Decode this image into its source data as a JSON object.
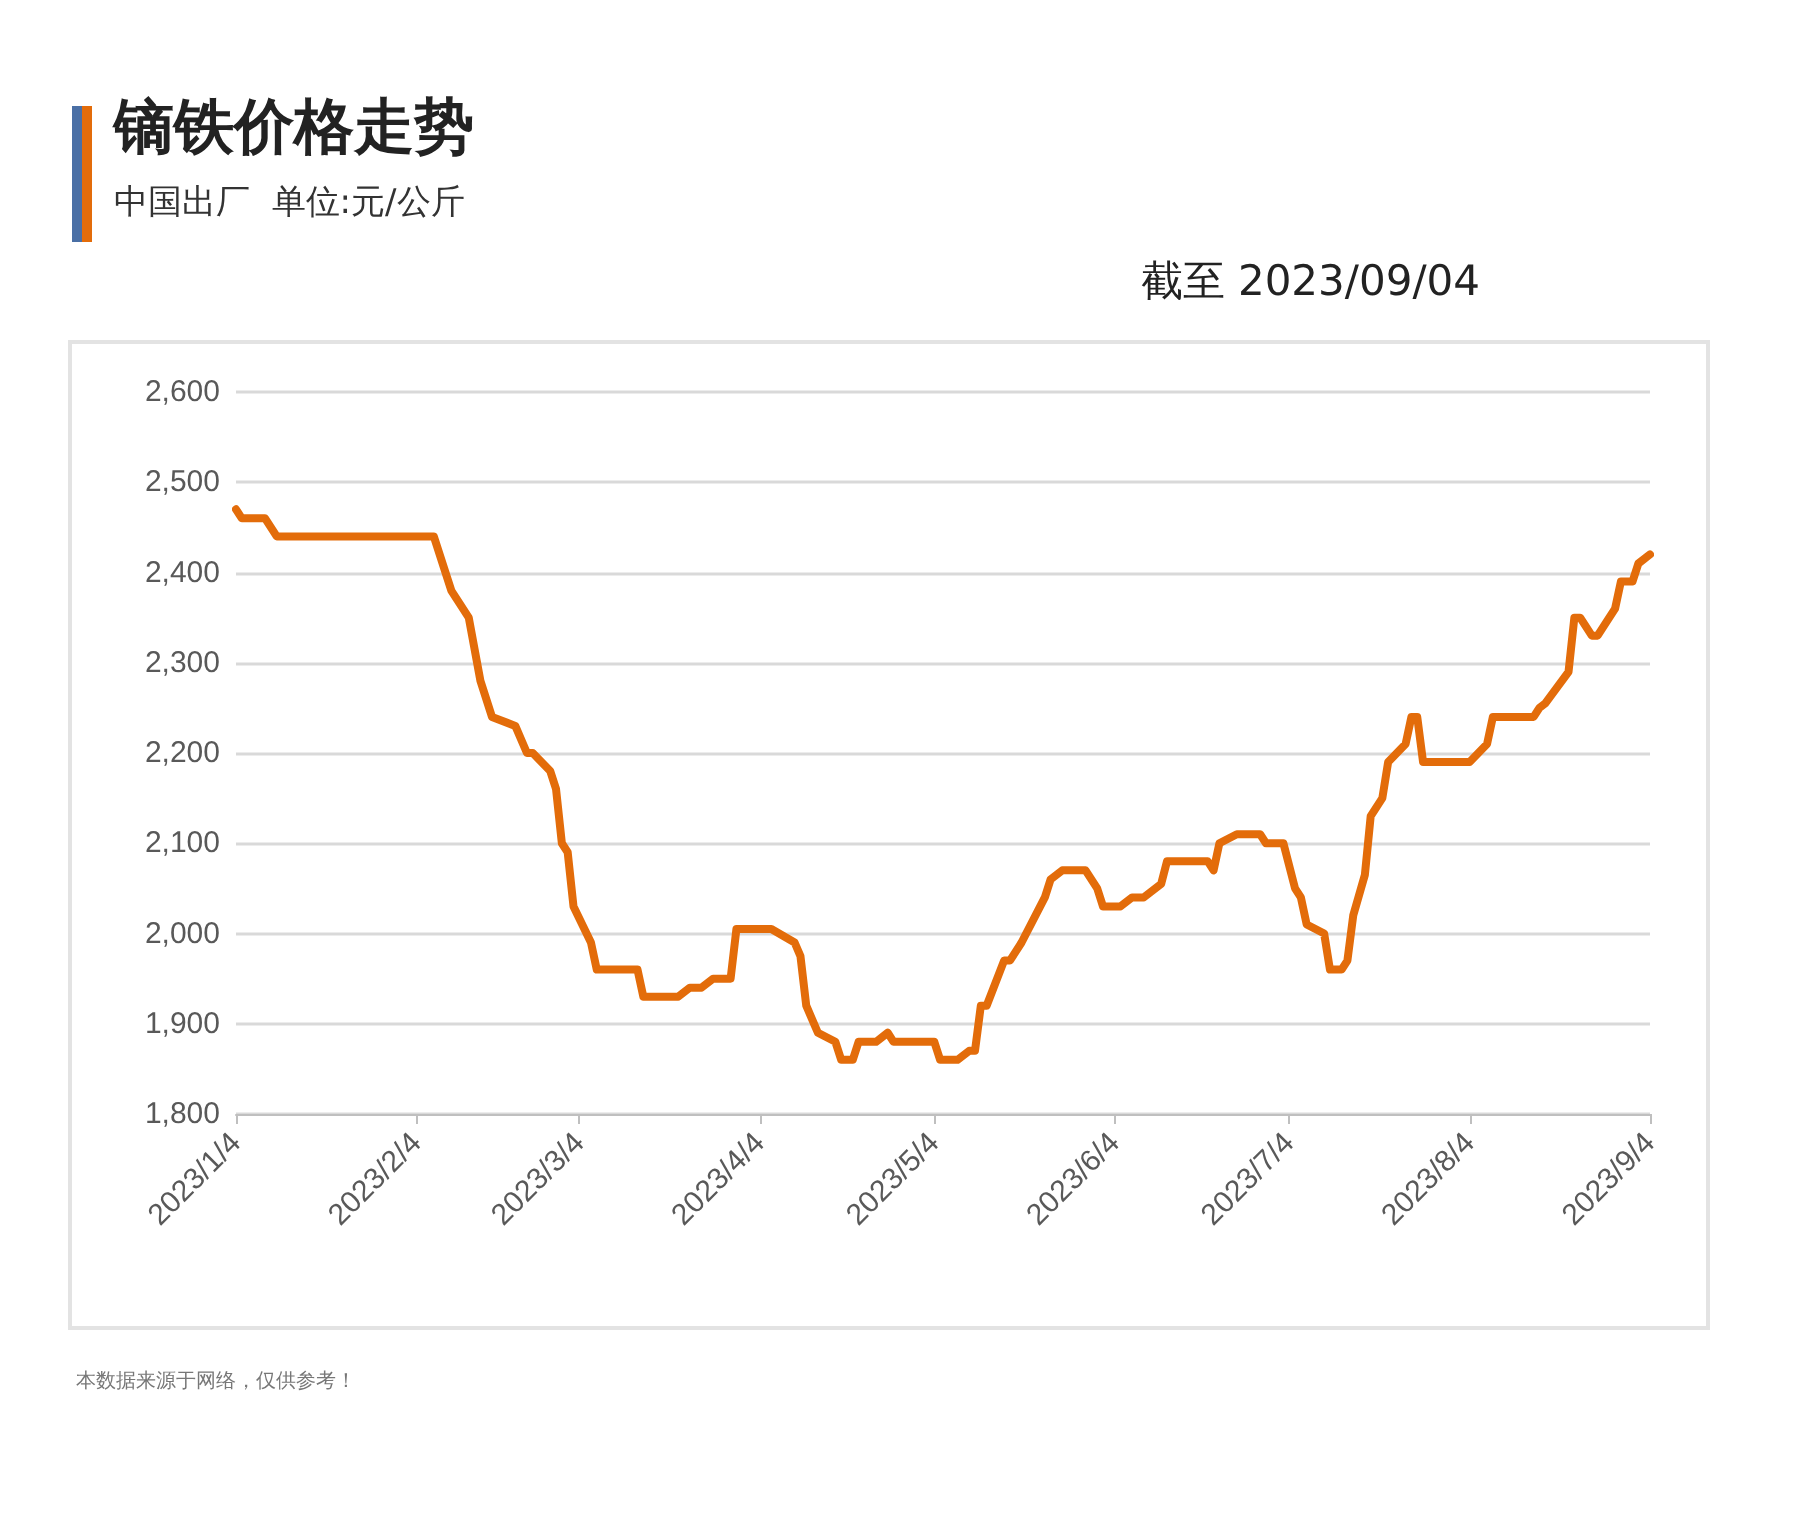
{
  "chart_data": {
    "type": "line",
    "title": "镝铁价格走势",
    "subtitle": "中国出厂  单位:元/公斤",
    "annotations": [
      "截至 2023/09/04",
      "本数据来源于网络，仅供参考！"
    ],
    "x": [
      "2023-01-04",
      "2023-01-05",
      "2023-01-09",
      "2023-01-11",
      "2023-02-07",
      "2023-02-10",
      "2023-02-13",
      "2023-02-15",
      "2023-02-17",
      "2023-02-21",
      "2023-02-23",
      "2023-02-24",
      "2023-02-27",
      "2023-02-28",
      "2023-03-01",
      "2023-03-02",
      "2023-03-03",
      "2023-03-06",
      "2023-03-07",
      "2023-03-14",
      "2023-03-15",
      "2023-03-21",
      "2023-03-23",
      "2023-03-25",
      "2023-03-27",
      "2023-03-30",
      "2023-03-31",
      "2023-04-06",
      "2023-04-10",
      "2023-04-11",
      "2023-04-12",
      "2023-04-14",
      "2023-04-17",
      "2023-04-18",
      "2023-04-20",
      "2023-04-21",
      "2023-04-24",
      "2023-04-26",
      "2023-04-27",
      "2023-05-04",
      "2023-05-05",
      "2023-05-08",
      "2023-05-10",
      "2023-05-11",
      "2023-05-12",
      "2023-05-13",
      "2023-05-16",
      "2023-05-17",
      "2023-05-19",
      "2023-05-23",
      "2023-05-24",
      "2023-05-26",
      "2023-05-30",
      "2023-06-01",
      "2023-06-02",
      "2023-06-05",
      "2023-06-07",
      "2023-06-09",
      "2023-06-12",
      "2023-06-13",
      "2023-06-20",
      "2023-06-21",
      "2023-06-22",
      "2023-06-25",
      "2023-06-29",
      "2023-06-30",
      "2023-07-03",
      "2023-07-05",
      "2023-07-06",
      "2023-07-07",
      "2023-07-10",
      "2023-07-11",
      "2023-07-13",
      "2023-07-14",
      "2023-07-15",
      "2023-07-17",
      "2023-07-18",
      "2023-07-20",
      "2023-07-21",
      "2023-07-24",
      "2023-07-25",
      "2023-07-26",
      "2023-07-27",
      "2023-08-04",
      "2023-08-07",
      "2023-08-08",
      "2023-08-15",
      "2023-08-16",
      "2023-08-17",
      "2023-08-21",
      "2023-08-22",
      "2023-08-23",
      "2023-08-25",
      "2023-08-26",
      "2023-08-29",
      "2023-08-30",
      "2023-09-01",
      "2023-09-02",
      "2023-09-04"
    ],
    "series": [
      {
        "color": "#e36c0a",
        "values": [
          2470,
          2460,
          2460,
          2440,
          2440,
          2380,
          2350,
          2280,
          2240,
          2230,
          2200,
          2200,
          2180,
          2160,
          2100,
          2090,
          2030,
          1990,
          1960,
          1960,
          1930,
          1930,
          1940,
          1940,
          1950,
          1950,
          2005,
          2005,
          1990,
          1975,
          1920,
          1890,
          1880,
          1860,
          1860,
          1880,
          1880,
          1890,
          1880,
          1880,
          1860,
          1860,
          1870,
          1870,
          1920,
          1920,
          1970,
          1970,
          1990,
          2040,
          2060,
          2070,
          2070,
          2050,
          2030,
          2030,
          2040,
          2040,
          2055,
          2080,
          2080,
          2070,
          2100,
          2110,
          2110,
          2100,
          2100,
          2050,
          2040,
          2010,
          2000,
          1960,
          1960,
          1970,
          2020,
          2065,
          2130,
          2150,
          2190,
          2210,
          2240,
          2240,
          2190,
          2190,
          2210,
          2240,
          2240,
          2250,
          2255,
          2290,
          2350,
          2350,
          2330,
          2330,
          2360,
          2390,
          2390,
          2410,
          2420
        ]
      }
    ],
    "xlim": [
      "2023-01-04",
      "2023-09-04"
    ],
    "xticks": [
      {
        "value": "2023-01-04",
        "label": "2023/1/4"
      },
      {
        "value": "2023-02-04",
        "label": "2023/2/4"
      },
      {
        "value": "2023-03-04",
        "label": "2023/3/4"
      },
      {
        "value": "2023-04-04",
        "label": "2023/4/4"
      },
      {
        "value": "2023-05-04",
        "label": "2023/5/4"
      },
      {
        "value": "2023-06-04",
        "label": "2023/6/4"
      },
      {
        "value": "2023-07-04",
        "label": "2023/7/4"
      },
      {
        "value": "2023-08-04",
        "label": "2023/8/4"
      },
      {
        "value": "2023-09-04",
        "label": "2023/9/4"
      }
    ],
    "ylim": [
      1800,
      2600
    ],
    "yticks": [
      {
        "value": 1800,
        "label": "1,800"
      },
      {
        "value": 1900,
        "label": "1,900"
      },
      {
        "value": 2000,
        "label": "2,000"
      },
      {
        "value": 2100,
        "label": "2,100"
      },
      {
        "value": 2200,
        "label": "2,200"
      },
      {
        "value": 2300,
        "label": "2,300"
      },
      {
        "value": 2400,
        "label": "2,400"
      },
      {
        "value": 2500,
        "label": "2,500"
      },
      {
        "value": 2600,
        "label": "2,600"
      }
    ],
    "grid": "y",
    "marker": "none",
    "line_style": "solid"
  }
}
